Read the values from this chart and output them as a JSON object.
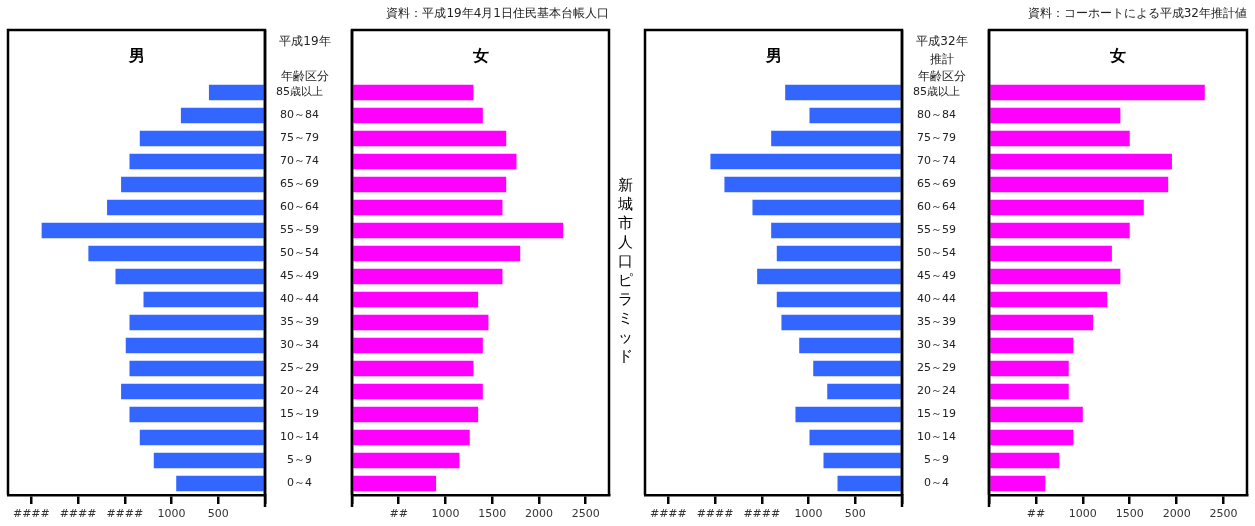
{
  "chart_data": [
    {
      "type": "bar",
      "orientation": "horizontal",
      "title": "男",
      "ylabel": "年齢区分",
      "annotations": [
        "平成19年"
      ],
      "categories": [
        "85歳以上",
        "80～84",
        "75～79",
        "70～74",
        "65～69",
        "60～64",
        "55～59",
        "50～54",
        "45～49",
        "40～44",
        "35～39",
        "30～34",
        "25～29",
        "20～24",
        "15～19",
        "10～14",
        "5～9",
        "0～4"
      ],
      "values": [
        600,
        900,
        1340,
        1450,
        1540,
        1690,
        2390,
        1890,
        1600,
        1300,
        1450,
        1490,
        1450,
        1540,
        1450,
        1340,
        1190,
        950
      ],
      "color": "#3366ff",
      "xlim": [
        2750,
        0
      ],
      "xticks": [
        {
          "value": 2500,
          "label": "####"
        },
        {
          "value": 2000,
          "label": "####"
        },
        {
          "value": 1500,
          "label": "####"
        },
        1000,
        500,
        {
          "value": 0,
          "label": null
        }
      ]
    },
    {
      "type": "bar",
      "orientation": "horizontal",
      "title": "女",
      "tick_labels": "x",
      "annotations": [
        "資料：平成19年4月1日住民基本台帳人口",
        "新城市人口ピラミッド"
      ],
      "categories": [
        null,
        null,
        null,
        null,
        null,
        null,
        null,
        null,
        null,
        null,
        null,
        null,
        null,
        null,
        null,
        null,
        null,
        null
      ],
      "values": [
        1300,
        1400,
        1650,
        1760,
        1650,
        1610,
        2260,
        1800,
        1610,
        1350,
        1460,
        1400,
        1300,
        1400,
        1350,
        1260,
        1150,
        900
      ],
      "color": "#ff00ff",
      "xlim": [
        0,
        2750
      ],
      "xticks": [
        {
          "value": 0,
          "label": null
        },
        {
          "value": 500,
          "label": "##"
        },
        1000,
        1500,
        2000,
        2500
      ]
    },
    {
      "type": "bar",
      "orientation": "horizontal",
      "title": "男",
      "ylabel": "年齢区分",
      "annotations": [
        "平成32年",
        "推計"
      ],
      "categories": [
        "85歳以上",
        "80～84",
        "75～79",
        "70～74",
        "65～69",
        "60～64",
        "55～59",
        "50～54",
        "45～49",
        "40～44",
        "35～39",
        "30～34",
        "25～29",
        "20～24",
        "15～19",
        "10～14",
        "5～9",
        "0～4"
      ],
      "values": [
        1250,
        990,
        1400,
        2050,
        1900,
        1600,
        1400,
        1340,
        1550,
        1340,
        1290,
        1100,
        950,
        800,
        1140,
        990,
        840,
        690
      ],
      "color": "#3366ff",
      "xlim": [
        2750,
        0
      ],
      "xticks": [
        {
          "value": 2500,
          "label": "####"
        },
        {
          "value": 2000,
          "label": "####"
        },
        {
          "value": 1500,
          "label": "####"
        },
        1000,
        500,
        {
          "value": 0,
          "label": null
        }
      ]
    },
    {
      "type": "bar",
      "orientation": "horizontal",
      "title": "女",
      "tick_labels": "x",
      "annotations": [
        "資料：コーホートによる平成32年推計値"
      ],
      "categories": [
        null,
        null,
        null,
        null,
        null,
        null,
        null,
        null,
        null,
        null,
        null,
        null,
        null,
        null,
        null,
        null,
        null,
        null
      ],
      "values": [
        2300,
        1400,
        1500,
        1950,
        1910,
        1650,
        1500,
        1310,
        1400,
        1260,
        1110,
        900,
        850,
        850,
        1000,
        900,
        750,
        600
      ],
      "color": "#ff00ff",
      "xlim": [
        0,
        2750
      ],
      "xticks": [
        {
          "value": 0,
          "label": null
        },
        {
          "value": 500,
          "label": "##"
        },
        1000,
        1500,
        2000,
        2500
      ]
    }
  ]
}
